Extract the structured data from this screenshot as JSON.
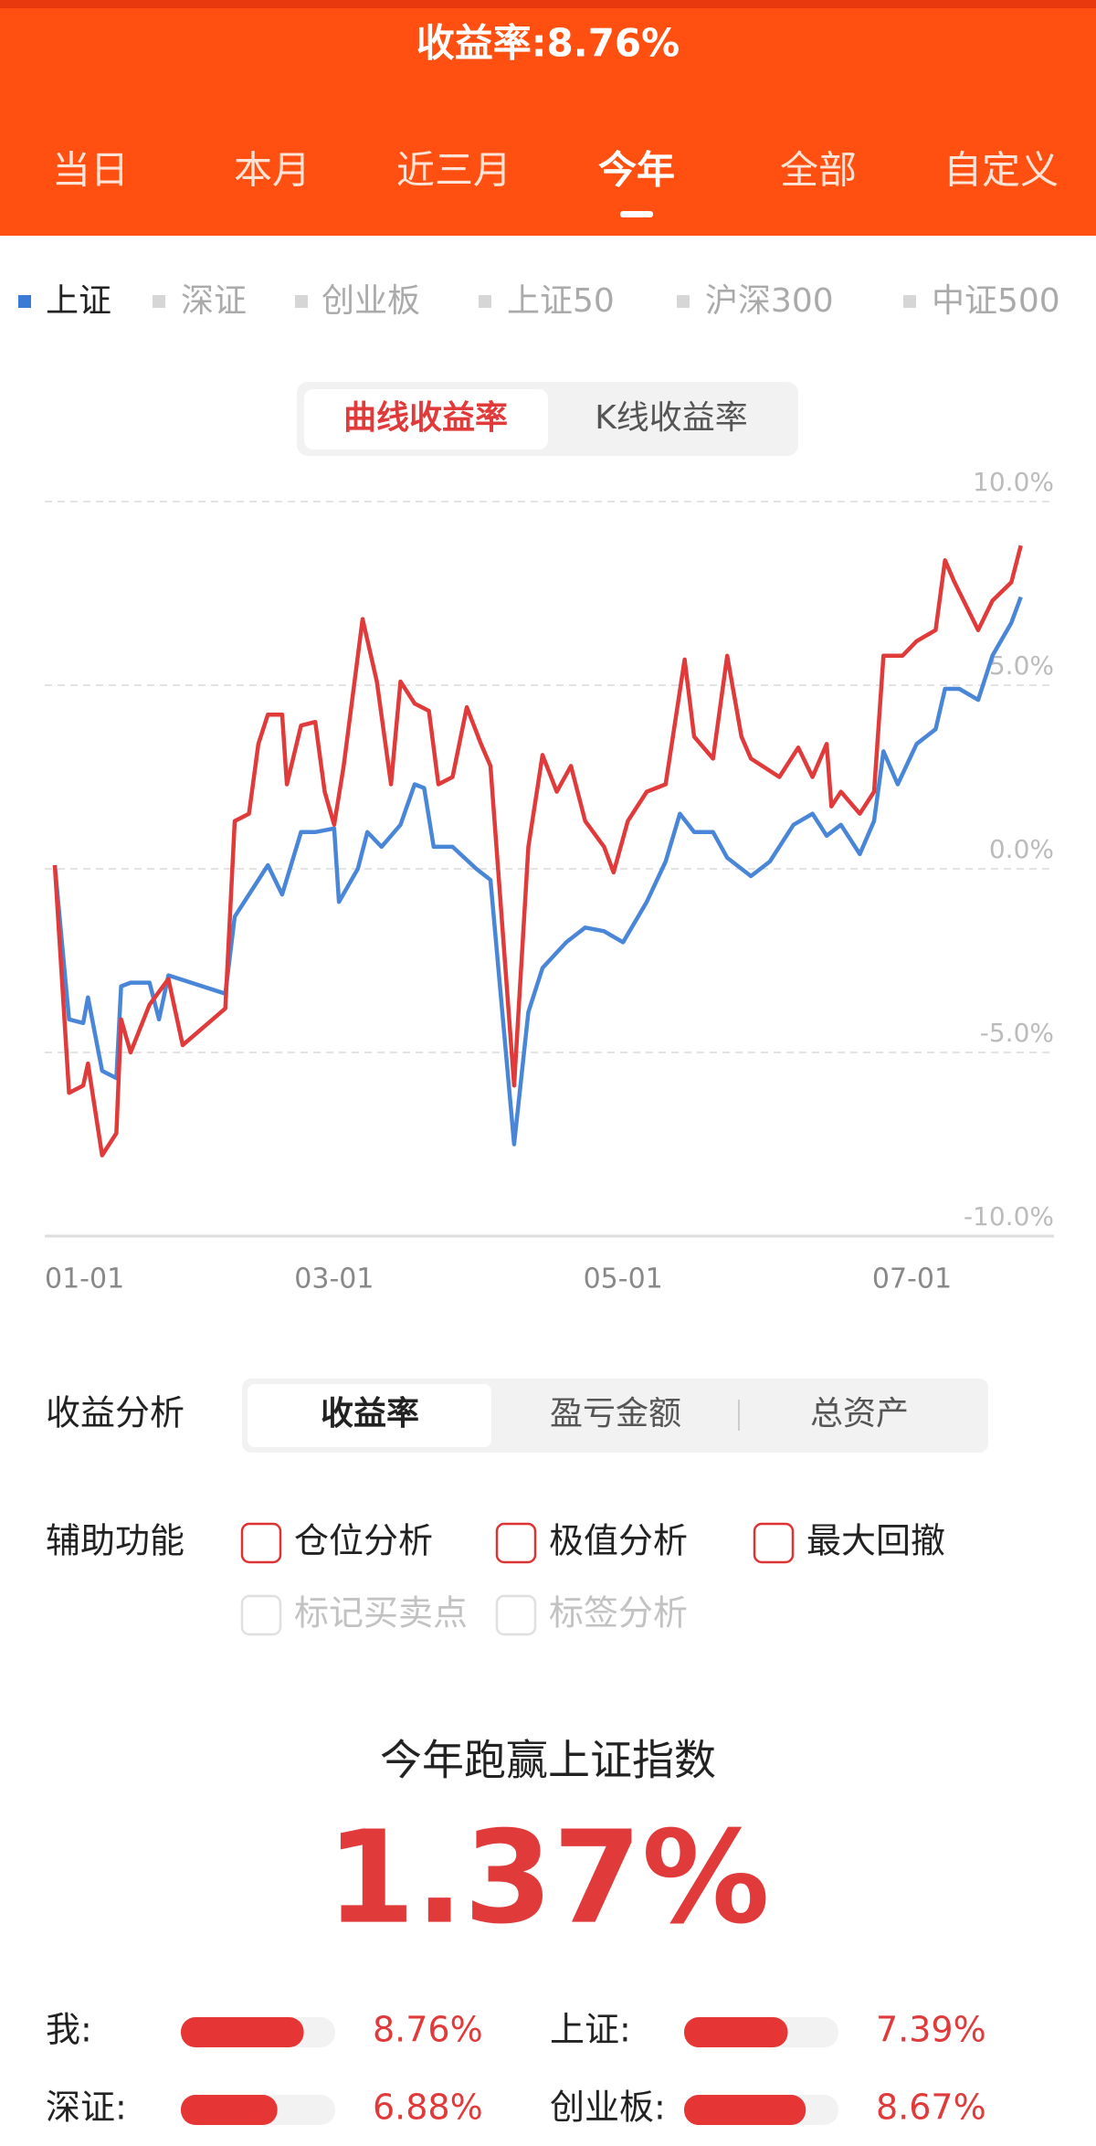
{
  "header": {
    "title": "收益率:8.76%",
    "tabs": [
      "当日",
      "本月",
      "近三月",
      "今年",
      "全部",
      "自定义"
    ],
    "active_tab": 3
  },
  "index_tabs": {
    "items": [
      "上证",
      "深证",
      "创业板",
      "上证50",
      "沪深300",
      "中证500"
    ],
    "active": 0
  },
  "chart_mode": {
    "options": [
      "曲线收益率",
      "K线收益率"
    ],
    "active": 0
  },
  "chart_data": {
    "type": "line",
    "grid": true,
    "xlim": [
      "01-01",
      "07-31"
    ],
    "xticks": [
      "01-01",
      "03-01",
      "05-01",
      "07-01"
    ],
    "ylim": [
      -10,
      10
    ],
    "yticks": [
      {
        "value": 10,
        "label": "10.0%"
      },
      {
        "value": 5,
        "label": "5.0%"
      },
      {
        "value": 0,
        "label": "0.0%"
      },
      {
        "value": -5,
        "label": "-5.0%"
      },
      {
        "value": -10,
        "label": "-10.0%"
      }
    ],
    "series": [
      {
        "color": "#e03a3a",
        "x": [
          "01-01",
          "01-04",
          "01-07",
          "01-08",
          "01-11",
          "01-14",
          "01-15",
          "01-17",
          "01-21",
          "01-25",
          "01-28",
          "02-06",
          "02-08",
          "02-11",
          "02-13",
          "02-15",
          "02-18",
          "02-19",
          "02-22",
          "02-25",
          "02-27",
          "03-01",
          "03-03",
          "03-07",
          "03-10",
          "03-13",
          "03-15",
          "03-18",
          "03-21",
          "03-23",
          "03-26",
          "03-29",
          "04-01",
          "04-03",
          "04-08",
          "04-11",
          "04-14",
          "04-17",
          "04-20",
          "04-23",
          "04-27",
          "04-29",
          "05-02",
          "05-06",
          "05-10",
          "05-14",
          "05-16",
          "05-20",
          "05-23",
          "05-26",
          "05-28",
          "06-03",
          "06-07",
          "06-10",
          "06-13",
          "06-14",
          "06-16",
          "06-20",
          "06-23",
          "06-25",
          "06-29",
          "07-02",
          "07-06",
          "07-08",
          "07-10",
          "07-15",
          "07-18",
          "07-22",
          "07-24"
        ],
        "values": [
          0.1,
          -6.1,
          -5.9,
          -5.3,
          -7.8,
          -7.2,
          -4.1,
          -5.0,
          -3.7,
          -3.0,
          -4.8,
          -3.8,
          1.3,
          1.5,
          3.4,
          4.2,
          4.2,
          2.3,
          3.9,
          4.0,
          2.1,
          1.2,
          2.8,
          6.8,
          5.1,
          2.3,
          5.1,
          4.5,
          4.3,
          2.3,
          2.5,
          4.4,
          3.4,
          2.8,
          -5.9,
          0.6,
          3.1,
          2.1,
          2.8,
          1.3,
          0.6,
          -0.1,
          1.3,
          2.1,
          2.3,
          5.7,
          3.6,
          3.0,
          5.8,
          3.6,
          3.0,
          2.5,
          3.3,
          2.5,
          3.4,
          1.7,
          2.1,
          1.5,
          2.1,
          5.8,
          5.8,
          6.2,
          6.5,
          8.4,
          7.8,
          6.5,
          7.3,
          7.8,
          8.8
        ]
      },
      {
        "color": "#4a86d8",
        "x": [
          "01-01",
          "01-04",
          "01-07",
          "01-08",
          "01-11",
          "01-14",
          "01-15",
          "01-17",
          "01-21",
          "01-23",
          "01-25",
          "02-06",
          "02-08",
          "02-12",
          "02-15",
          "02-18",
          "02-22",
          "02-25",
          "03-01",
          "03-02",
          "03-06",
          "03-08",
          "03-11",
          "03-15",
          "03-18",
          "03-20",
          "03-22",
          "03-26",
          "03-31",
          "04-03",
          "04-08",
          "04-11",
          "04-14",
          "04-19",
          "04-23",
          "04-27",
          "05-01",
          "05-06",
          "05-10",
          "05-13",
          "05-16",
          "05-20",
          "05-23",
          "05-28",
          "06-01",
          "06-06",
          "06-10",
          "06-13",
          "06-16",
          "06-20",
          "06-23",
          "06-25",
          "06-28",
          "07-02",
          "07-06",
          "07-08",
          "07-11",
          "07-15",
          "07-18",
          "07-22",
          "07-24"
        ],
        "values": [
          0.1,
          -4.1,
          -4.2,
          -3.5,
          -5.5,
          -5.7,
          -3.2,
          -3.1,
          -3.1,
          -4.1,
          -2.9,
          -3.4,
          -1.3,
          -0.5,
          0.1,
          -0.7,
          1.0,
          1.0,
          1.1,
          -0.9,
          0.0,
          1.0,
          0.6,
          1.2,
          2.3,
          2.2,
          0.6,
          0.6,
          0.0,
          -0.3,
          -7.5,
          -3.9,
          -2.7,
          -2.0,
          -1.6,
          -1.7,
          -2.0,
          -0.9,
          0.2,
          1.5,
          1.0,
          1.0,
          0.3,
          -0.2,
          0.2,
          1.2,
          1.5,
          0.9,
          1.2,
          0.4,
          1.3,
          3.2,
          2.3,
          3.4,
          3.8,
          4.9,
          4.9,
          4.6,
          5.8,
          6.7,
          7.4
        ]
      }
    ]
  },
  "analysis": {
    "label": "收益分析",
    "options": [
      "收益率",
      "盈亏金额",
      "总资产"
    ],
    "active": 0
  },
  "aux": {
    "label": "辅助功能",
    "options": [
      "仓位分析",
      "极值分析",
      "最大回撤"
    ],
    "disabled_options": [
      "标记买卖点",
      "标签分析"
    ]
  },
  "summary": {
    "title": "今年跑赢上证指数",
    "value": "1.37%"
  },
  "comparison": {
    "xlim": [
      0,
      11
    ],
    "items": [
      {
        "label": "我:",
        "value": 8.76,
        "value_label": "8.76%"
      },
      {
        "label": "上证:",
        "value": 7.39,
        "value_label": "7.39%"
      },
      {
        "label": "深证:",
        "value": 6.88,
        "value_label": "6.88%"
      },
      {
        "label": "创业板:",
        "value": 8.67,
        "value_label": "8.67%"
      }
    ]
  }
}
